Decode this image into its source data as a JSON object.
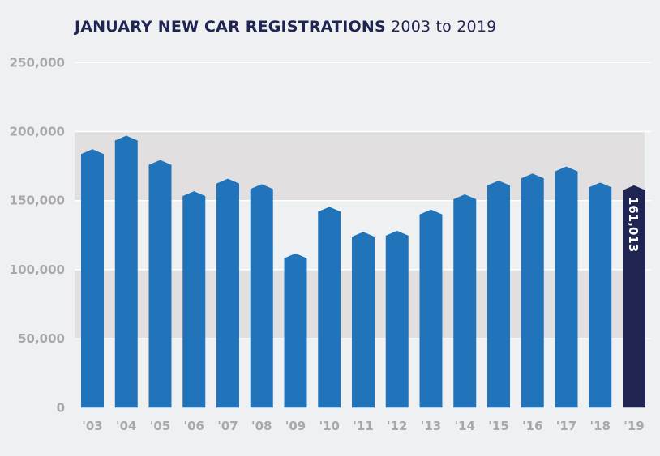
{
  "chart_data": {
    "type": "bar",
    "title": "JANUARY NEW CAR REGISTRATIONS",
    "subtitle": "2003 to 2019",
    "xlabel": "",
    "ylabel": "",
    "ylim": [
      0,
      250000
    ],
    "yticks": [
      0,
      50000,
      100000,
      150000,
      200000,
      250000
    ],
    "ytick_labels": [
      "0",
      "50,000",
      "100,000",
      "150,000",
      "200,000",
      "250,000"
    ],
    "categories": [
      "'03",
      "'04",
      "'05",
      "'06",
      "'07",
      "'08",
      "'09",
      "'10",
      "'11",
      "'12",
      "'13",
      "'14",
      "'15",
      "'16",
      "'17",
      "'18",
      "'19"
    ],
    "values": [
      187200,
      197100,
      179400,
      156800,
      165900,
      161900,
      111800,
      145500,
      127400,
      128200,
      143500,
      154500,
      164500,
      169600,
      174700,
      163100,
      161013
    ],
    "highlight_index": 16,
    "data_labels": [
      {
        "index": 16,
        "text": "161,013"
      }
    ],
    "grid": true,
    "shaded_bands": [
      [
        50000,
        100000
      ],
      [
        150000,
        200000
      ]
    ],
    "colors": {
      "bar": "#2274ba",
      "highlight": "#1f2452",
      "band": "#e1dfe0",
      "grid": "#ffffff",
      "text": "#a9a9ab",
      "title": "#1f2452"
    }
  }
}
